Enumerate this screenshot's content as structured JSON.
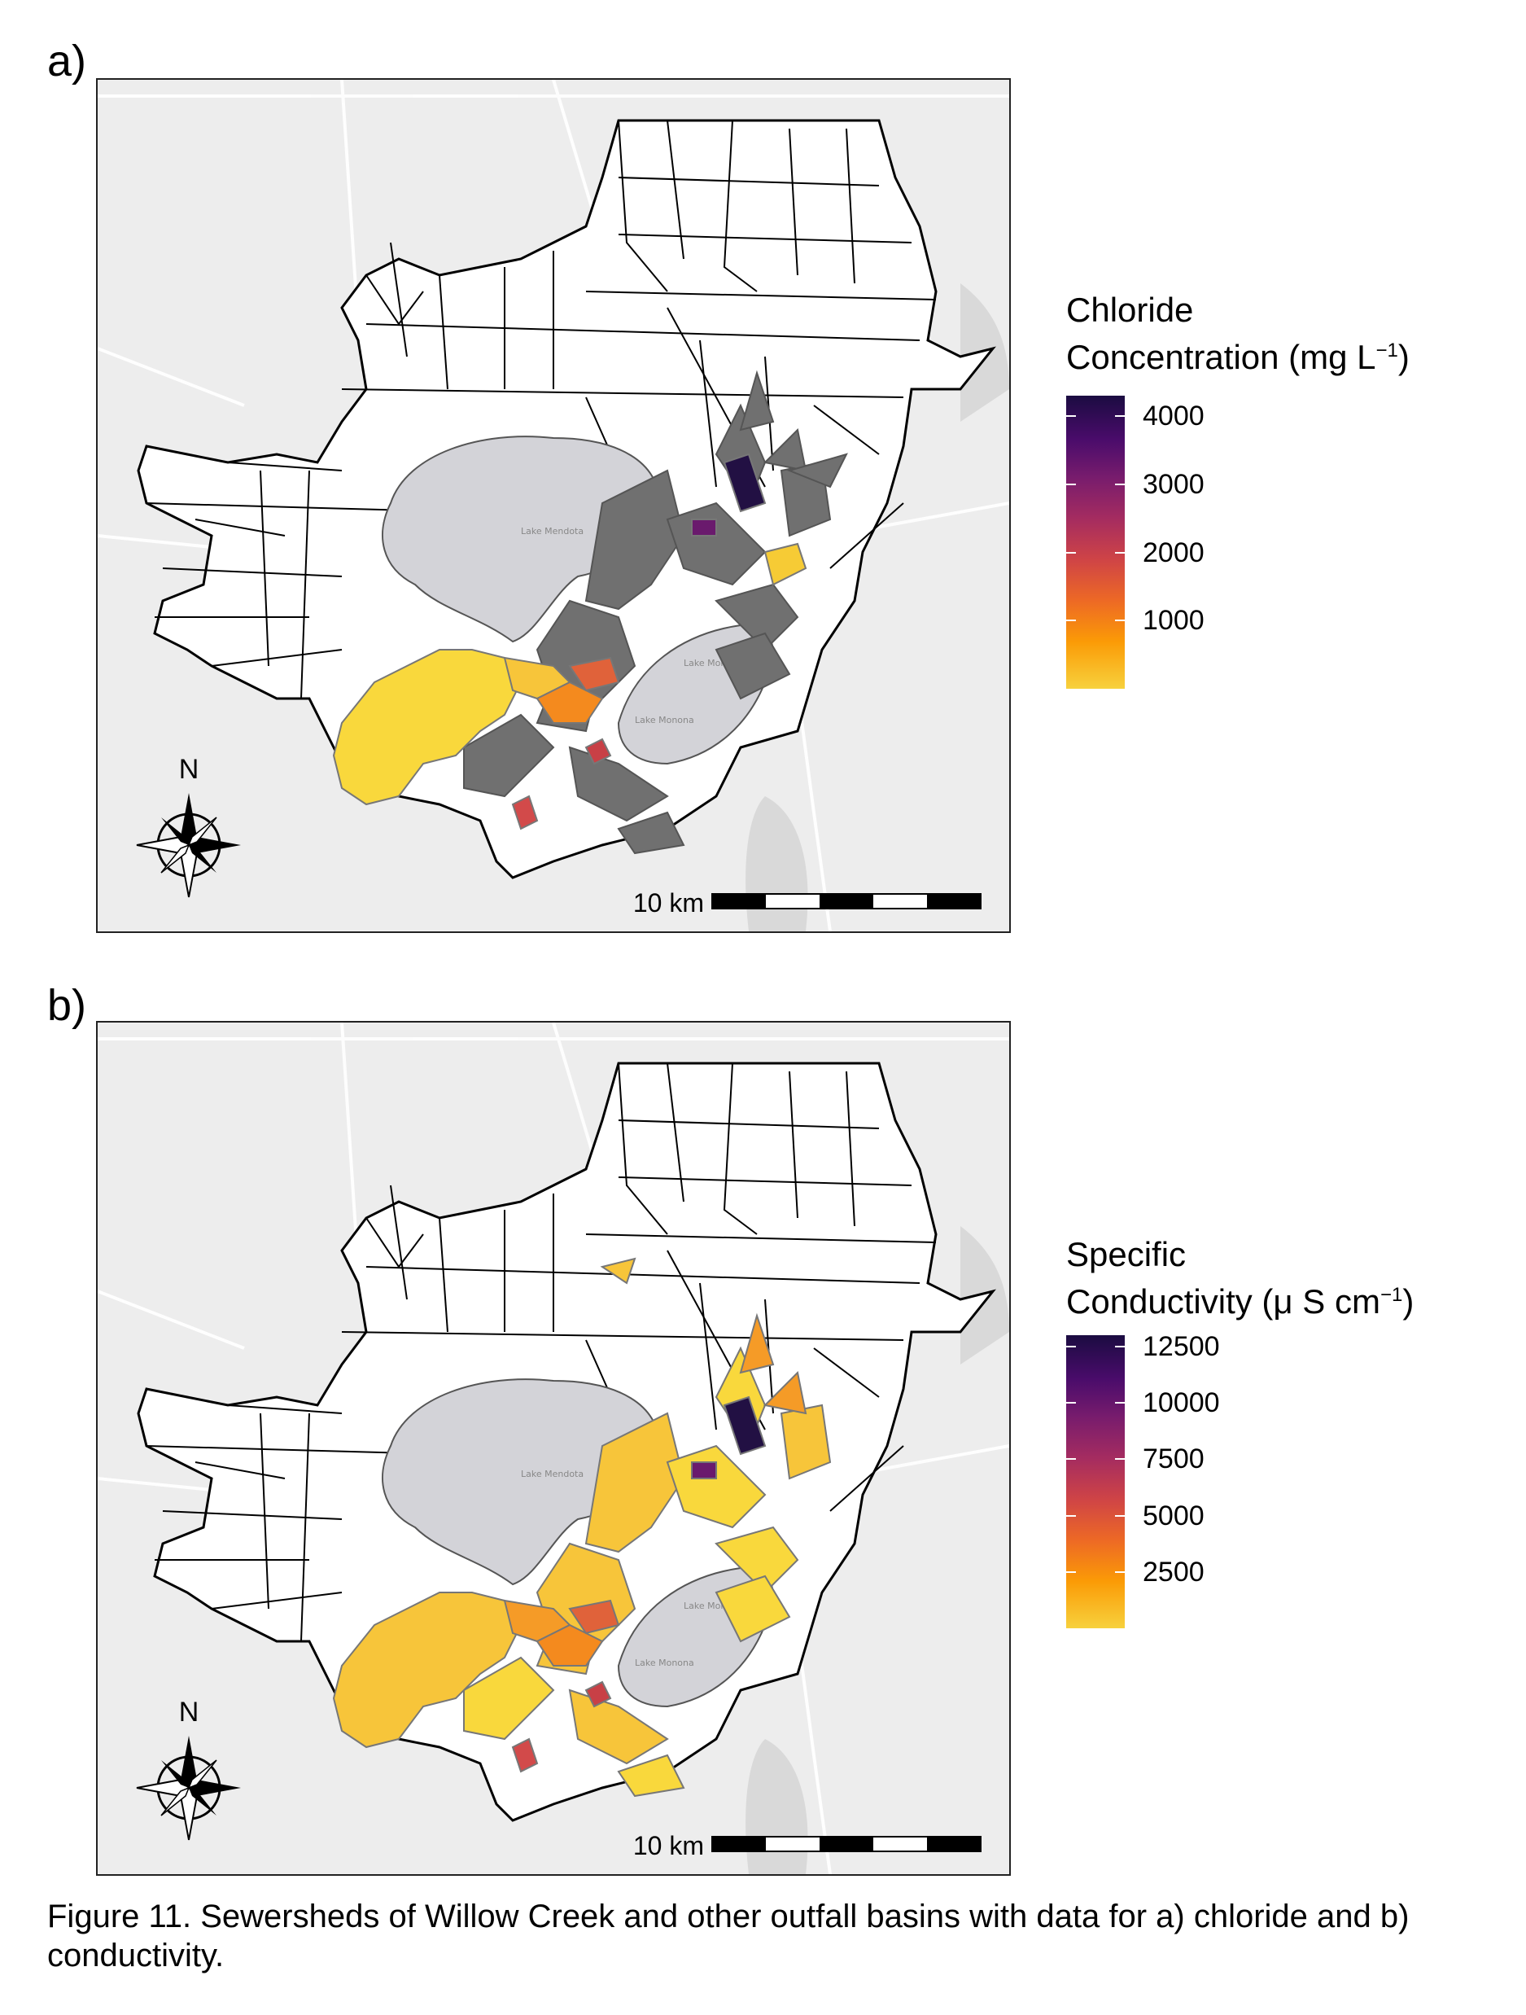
{
  "panels": [
    {
      "letter": "a)",
      "legend": {
        "title_line1": "Chloride",
        "title_line2_pre": "Concentration (mg L",
        "title_sup": "−1",
        "title_line2_post": ")",
        "ticks": [
          "4000",
          "3000",
          "2000",
          "1000"
        ],
        "tick_values": [
          4000,
          3000,
          2000,
          1000
        ],
        "range": [
          0,
          4300
        ],
        "colors": [
          "#1b0c41",
          "#f7d13d"
        ]
      },
      "lake_labels": [
        "Lake Mendota",
        "Lake Monona",
        "Lake Monona"
      ],
      "north_label": "N",
      "scale_label": "10 km"
    },
    {
      "letter": "b)",
      "legend": {
        "title_line1": "Specific",
        "title_line2_pre": "Conductivity (μ S cm",
        "title_sup": "−1",
        "title_line2_post": ")",
        "ticks": [
          "12500",
          "10000",
          "7500",
          "5000",
          "2500"
        ],
        "tick_values": [
          12500,
          10000,
          7500,
          5000,
          2500
        ],
        "range": [
          0,
          13000
        ],
        "colors": [
          "#1b0c41",
          "#f7d13d"
        ]
      },
      "lake_labels": [
        "Lake Mendota",
        "Lake Monona",
        "Lake Monona"
      ],
      "north_label": "N",
      "scale_label": "10 km"
    }
  ],
  "caption": "Figure 11. Sewersheds of Willow Creek and other outfall basins with data for a) chloride and b) conductivity."
}
